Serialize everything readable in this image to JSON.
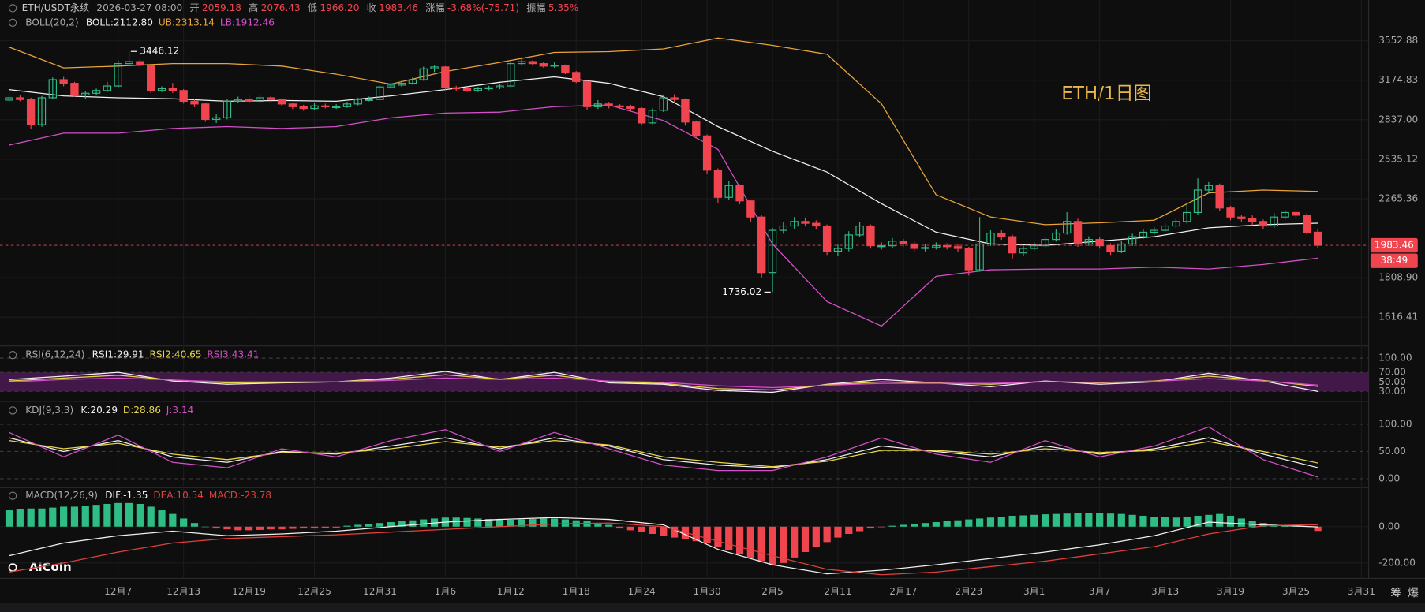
{
  "chart_data": {
    "type": "candlestick",
    "symbol": "ETH/USDT永续",
    "time": "2026-03-27 08:00",
    "quote": [
      {
        "label": "开",
        "value": "2059.18"
      },
      {
        "label": "高",
        "value": "2076.43"
      },
      {
        "label": "低",
        "value": "1966.20"
      },
      {
        "label": "收",
        "value": "1983.46"
      },
      {
        "label": "涨幅",
        "value": "-3.68%(-75.71)"
      },
      {
        "label": "振幅",
        "value": "5.35%"
      }
    ],
    "watermark": "ETH/1日图",
    "countdown": "38:49",
    "logo": "AiCoin",
    "buttons": [
      "筹",
      "爆"
    ],
    "up_color": "#2ebd85",
    "down_color": "#f0454f",
    "log_scale": true,
    "grid": true,
    "ylim": [
      1493,
      3990
    ],
    "yticks": [
      3552.88,
      3174.83,
      {
        "value": 2837,
        "label": "2837.00"
      },
      2535.12,
      2265.36,
      {
        "value": 1808.9,
        "label": "1808.90"
      },
      1616.41
    ],
    "categories": [
      null,
      null,
      null,
      null,
      null,
      null,
      null,
      null,
      null,
      null,
      "12月7",
      null,
      null,
      null,
      null,
      null,
      "12月13",
      null,
      null,
      null,
      null,
      null,
      "12月19",
      null,
      null,
      null,
      null,
      null,
      "12月25",
      null,
      null,
      null,
      null,
      null,
      "12月31",
      null,
      null,
      null,
      null,
      null,
      "1月6",
      null,
      null,
      null,
      null,
      null,
      "1月12",
      null,
      null,
      null,
      null,
      null,
      "1月18",
      null,
      null,
      null,
      null,
      null,
      "1月24",
      null,
      null,
      null,
      null,
      null,
      "1月30",
      null,
      null,
      null,
      null,
      null,
      "2月5",
      null,
      null,
      null,
      null,
      null,
      "2月11",
      null,
      null,
      null,
      null,
      null,
      "2月17",
      null,
      null,
      null,
      null,
      null,
      "2月23",
      null,
      null,
      null,
      null,
      null,
      "3月1",
      null,
      null,
      null,
      null,
      null,
      "3月7",
      null,
      null,
      null,
      null,
      null,
      "3月13",
      null,
      null,
      null,
      null,
      null,
      "3月19",
      null,
      null,
      null,
      null,
      null,
      "3月25",
      null,
      null,
      null,
      null,
      null,
      "3月31"
    ],
    "open": [
      3000,
      3020,
      3005,
      2797,
      3020,
      3180,
      3147,
      3044,
      3059,
      3083,
      3123,
      3329,
      3348,
      3314,
      3083,
      3099,
      3083,
      2990,
      2967,
      2839,
      2853,
      2990,
      3005,
      2990,
      3020,
      3005,
      2967,
      2944,
      2929,
      2951,
      2944,
      2944,
      2967,
      3005,
      3005,
      3115,
      3131,
      3147,
      3180,
      3280,
      3297,
      3107,
      3099,
      3083,
      3099,
      3107,
      3123,
      3329,
      3348,
      3329,
      3305,
      3314,
      3246,
      3163,
      2944,
      2967,
      2951,
      2944,
      2929,
      2811,
      2914,
      3020,
      3005,
      2818,
      2709,
      2457,
      2274,
      2352,
      2251,
      2150,
      1835,
      2070,
      2096,
      2123,
      2112,
      2096,
      1951,
      1966,
      2043,
      2096,
      1981,
      1981,
      2007,
      1991,
      1966,
      1971,
      1981,
      1976,
      1966,
      1850,
      1991,
      2054,
      2033,
      1941,
      1966,
      1981,
      2017,
      2054,
      2123,
      1991,
      2017,
      1981,
      1951,
      1991,
      2033,
      2059,
      2070,
      2096,
      2123,
      2178,
      2322,
      2352,
      2206,
      2150,
      2140,
      2123,
      2096,
      2150,
      2178,
      2161,
      2059.18,
      null,
      null,
      null,
      null
    ],
    "high": [
      3045,
      3040,
      3020,
      3035,
      3200,
      3205,
      3160,
      3080,
      3100,
      3160,
      3360,
      3446.12,
      3370,
      3320,
      3120,
      3150,
      3095,
      3010,
      2980,
      2880,
      3010,
      3030,
      3040,
      3050,
      3035,
      3015,
      2980,
      2960,
      2975,
      2970,
      2965,
      2985,
      3020,
      3030,
      3130,
      3150,
      3170,
      3200,
      3300,
      3310,
      3305,
      3125,
      3115,
      3115,
      3125,
      3140,
      3345,
      3390,
      3360,
      3345,
      3340,
      3320,
      3260,
      3170,
      3000,
      2985,
      2965,
      2960,
      2940,
      2930,
      3040,
      3050,
      3015,
      2830,
      2720,
      2470,
      2380,
      2360,
      2260,
      2160,
      2085,
      2120,
      2150,
      2145,
      2130,
      2105,
      1990,
      2065,
      2120,
      2105,
      2000,
      2025,
      2020,
      2005,
      1990,
      2000,
      1995,
      1990,
      1975,
      2150,
      2070,
      2070,
      2045,
      1985,
      2000,
      2035,
      2075,
      2180,
      2140,
      2035,
      2030,
      1995,
      2010,
      2050,
      2080,
      2090,
      2110,
      2140,
      2230,
      2400,
      2375,
      2365,
      2220,
      2165,
      2160,
      2135,
      2175,
      2195,
      2190,
      2175,
      2076.43,
      null,
      null,
      null,
      null
    ],
    "low": [
      2985,
      2990,
      2760,
      2780,
      3010,
      3120,
      3030,
      3010,
      3040,
      3070,
      3110,
      3300,
      3290,
      3060,
      3070,
      3060,
      2970,
      2940,
      2820,
      2810,
      2840,
      2975,
      2970,
      2980,
      2985,
      2950,
      2925,
      2910,
      2915,
      2930,
      2925,
      2935,
      2955,
      2990,
      3000,
      3100,
      3115,
      3135,
      3170,
      3250,
      3090,
      3080,
      3070,
      3070,
      3085,
      3095,
      3115,
      3310,
      3310,
      3290,
      3290,
      3230,
      3150,
      2920,
      2925,
      2930,
      2925,
      2910,
      2790,
      2800,
      2900,
      2985,
      2790,
      2690,
      2430,
      2240,
      2260,
      2230,
      2120,
      1810,
      1736.02,
      2050,
      2080,
      2095,
      2075,
      1930,
      1925,
      1950,
      2030,
      1965,
      1960,
      1970,
      1975,
      1950,
      1950,
      1960,
      1960,
      1945,
      1820,
      1840,
      1980,
      2015,
      1910,
      1925,
      1955,
      1970,
      2005,
      2045,
      1975,
      1980,
      1965,
      1930,
      1940,
      1980,
      2020,
      2045,
      2060,
      2085,
      2110,
      2165,
      2300,
      2190,
      2130,
      2120,
      2100,
      2075,
      2085,
      2135,
      2140,
      2045,
      1966.2,
      null,
      null,
      null,
      null
    ],
    "close": [
      3020,
      3005,
      2797,
      3020,
      3180,
      3147,
      3044,
      3059,
      3083,
      3123,
      3329,
      3348,
      3314,
      3083,
      3099,
      3083,
      2990,
      2967,
      2839,
      2853,
      2990,
      3005,
      2990,
      3020,
      3005,
      2967,
      2944,
      2929,
      2951,
      2944,
      2944,
      2967,
      3005,
      3005,
      3115,
      3131,
      3147,
      3180,
      3280,
      3297,
      3107,
      3099,
      3083,
      3099,
      3107,
      3123,
      3329,
      3348,
      3329,
      3305,
      3314,
      3246,
      3163,
      2944,
      2967,
      2951,
      2944,
      2929,
      2811,
      2914,
      3020,
      3005,
      2818,
      2709,
      2457,
      2274,
      2352,
      2251,
      2150,
      1835,
      2070,
      2096,
      2123,
      2112,
      2096,
      1951,
      1966,
      2043,
      2096,
      1981,
      1981,
      2007,
      1991,
      1966,
      1971,
      1981,
      1976,
      1966,
      1850,
      1991,
      2054,
      2033,
      1941,
      1966,
      1981,
      2017,
      2054,
      2123,
      1991,
      2017,
      1981,
      1951,
      1991,
      2033,
      2059,
      2070,
      2096,
      2123,
      2178,
      2322,
      2352,
      2206,
      2150,
      2140,
      2123,
      2096,
      2150,
      2178,
      2161,
      2059.18,
      1983.46,
      null,
      null,
      null,
      null
    ],
    "indicator_x": [
      0,
      5,
      10,
      15,
      20,
      25,
      30,
      35,
      40,
      45,
      50,
      55,
      60,
      65,
      70,
      75,
      80,
      85,
      90,
      95,
      100,
      105,
      110,
      115,
      120
    ],
    "boll": {
      "title": "BOLL(20,2)",
      "readouts": [
        {
          "text": "BOLL:2112.80",
          "color": "#f0f0f0"
        },
        {
          "text": "UB:2313.14",
          "color": "#e8a33a"
        },
        {
          "text": "LB:1912.46",
          "color": "#d350c8"
        }
      ],
      "series": [
        {
          "color": "#f0f0f0",
          "values": [
            3091,
            3036,
            3020,
            3011,
            2990,
            2997,
            2990,
            3036,
            3091,
            3156,
            3205,
            3147,
            3029,
            2782,
            2593,
            2444,
            2233,
            2059,
            1991,
            1983,
            2007,
            2033,
            2085,
            2104,
            2112.8
          ]
        },
        {
          "color": "#e8a33a",
          "values": [
            3489,
            3288,
            3305,
            3329,
            3329,
            3305,
            3230,
            3139,
            3255,
            3340,
            3436,
            3444,
            3471,
            3580,
            3507,
            3418,
            2967,
            2291,
            2150,
            2104,
            2115,
            2131,
            2303,
            2322,
            2313.14
          ]
        },
        {
          "color": "#d350c8",
          "values": [
            2639,
            2730,
            2730,
            2767,
            2782,
            2767,
            2782,
            2853,
            2891,
            2899,
            2944,
            2959,
            2831,
            2607,
            1991,
            1690,
            1576,
            1816,
            1850,
            1854,
            1854,
            1864,
            1854,
            1878,
            1912.46
          ]
        }
      ]
    },
    "rsi": {
      "title": "RSI(6,12,24)",
      "readouts": [
        {
          "text": "RSI1:29.91",
          "color": "#f0f0f0"
        },
        {
          "text": "RSI2:40.65",
          "color": "#e8d44a"
        },
        {
          "text": "RSI3:43.41",
          "color": "#d350c8"
        }
      ],
      "ylim": [
        13,
        118
      ],
      "yticks": [
        {
          "value": 100,
          "label": "100.00"
        },
        {
          "value": 70,
          "label": "70.00"
        },
        {
          "value": 50,
          "label": "50.00"
        },
        {
          "value": 30,
          "label": "30.00"
        }
      ],
      "band_color": "#4a1a52",
      "series": [
        {
          "color": "#f0f0f0",
          "values": [
            55,
            62,
            70,
            52,
            45,
            48,
            50,
            58,
            72,
            55,
            70,
            48,
            45,
            32,
            28,
            45,
            55,
            48,
            40,
            52,
            45,
            50,
            68,
            52,
            29.91
          ]
        },
        {
          "color": "#e8d44a",
          "values": [
            52,
            58,
            64,
            54,
            48,
            49,
            50,
            56,
            65,
            56,
            64,
            50,
            47,
            36,
            33,
            44,
            50,
            48,
            45,
            51,
            48,
            52,
            62,
            53,
            40.65
          ]
        },
        {
          "color": "#d350c8",
          "values": [
            50,
            55,
            58,
            54,
            50,
            50,
            50,
            53,
            58,
            55,
            58,
            52,
            49,
            42,
            38,
            43,
            47,
            47,
            47,
            50,
            49,
            51,
            57,
            52,
            43.41
          ]
        }
      ]
    },
    "kdj": {
      "title": "KDJ(9,3,3)",
      "readouts": [
        {
          "text": "K:20.29",
          "color": "#f0f0f0"
        },
        {
          "text": "D:28.86",
          "color": "#e8d44a"
        },
        {
          "text": "J:3.14",
          "color": "#d350c8"
        }
      ],
      "ylim": [
        -13,
        137
      ],
      "yticks": [
        {
          "value": 100,
          "label": "100.00"
        },
        {
          "value": 50,
          "label": "50.00"
        },
        {
          "value": 0,
          "label": "0.00"
        }
      ],
      "series": [
        {
          "color": "#f0f0f0",
          "values": [
            75,
            50,
            70,
            40,
            30,
            50,
            45,
            60,
            75,
            55,
            75,
            60,
            35,
            25,
            20,
            35,
            60,
            50,
            40,
            60,
            45,
            55,
            75,
            45,
            20.29
          ]
        },
        {
          "color": "#e8d44a",
          "values": [
            70,
            55,
            65,
            45,
            35,
            48,
            47,
            55,
            68,
            58,
            70,
            62,
            40,
            30,
            22,
            32,
            52,
            52,
            45,
            55,
            48,
            52,
            68,
            50,
            28.86
          ]
        },
        {
          "color": "#d350c8",
          "values": [
            85,
            40,
            80,
            30,
            20,
            55,
            40,
            70,
            90,
            50,
            85,
            55,
            25,
            15,
            15,
            40,
            75,
            45,
            30,
            70,
            40,
            60,
            95,
            35,
            3.14
          ]
        }
      ]
    },
    "macd": {
      "title": "MACD(12,26,9)",
      "readouts": [
        {
          "text": "DIF:-1.35",
          "color": "#f0f0f0"
        },
        {
          "text": "DEA:10.54",
          "color": "#e0403c"
        },
        {
          "text": "MACD:-23.78",
          "color": "#e0403c"
        }
      ],
      "ylim": [
        -275,
        200
      ],
      "yticks": [
        {
          "value": 0,
          "label": "0.00"
        },
        {
          "value": -200,
          "label": "-200.00"
        }
      ],
      "histogram": [
        90,
        95,
        100,
        100,
        105,
        110,
        110,
        115,
        120,
        125,
        130,
        130,
        125,
        110,
        90,
        70,
        45,
        20,
        0,
        -10,
        -15,
        -20,
        -20,
        -18,
        -15,
        -15,
        -12,
        -10,
        -10,
        -8,
        -5,
        5,
        10,
        15,
        20,
        25,
        30,
        35,
        40,
        45,
        50,
        50,
        48,
        45,
        42,
        40,
        38,
        40,
        42,
        45,
        45,
        40,
        35,
        30,
        20,
        10,
        -10,
        -20,
        -30,
        -40,
        -50,
        -60,
        -70,
        -80,
        -90,
        -110,
        -130,
        -150,
        -170,
        -190,
        -210,
        -200,
        -170,
        -140,
        -110,
        -85,
        -60,
        -40,
        -25,
        -10,
        -3,
        5,
        10,
        15,
        20,
        25,
        30,
        35,
        40,
        45,
        50,
        55,
        60,
        62,
        65,
        68,
        70,
        72,
        75,
        75,
        75,
        72,
        70,
        65,
        60,
        55,
        52,
        50,
        55,
        60,
        65,
        70,
        60,
        45,
        30,
        20,
        12,
        8,
        5,
        2,
        -23.78,
        null,
        null,
        null,
        null
      ],
      "series": [
        {
          "color": "#f0f0f0",
          "values": [
            -160,
            -90,
            -50,
            -25,
            -50,
            -40,
            -25,
            0,
            25,
            40,
            50,
            40,
            10,
            -125,
            -210,
            -260,
            -240,
            -210,
            -175,
            -140,
            -100,
            -50,
            25,
            10,
            -1.35
          ]
        },
        {
          "color": "#e0403c",
          "values": [
            -250,
            -200,
            -140,
            -90,
            -65,
            -55,
            -45,
            -30,
            -15,
            0,
            15,
            20,
            0,
            -80,
            -160,
            -235,
            -265,
            -250,
            -220,
            -190,
            -150,
            -110,
            -40,
            5,
            10.54
          ]
        }
      ]
    }
  }
}
